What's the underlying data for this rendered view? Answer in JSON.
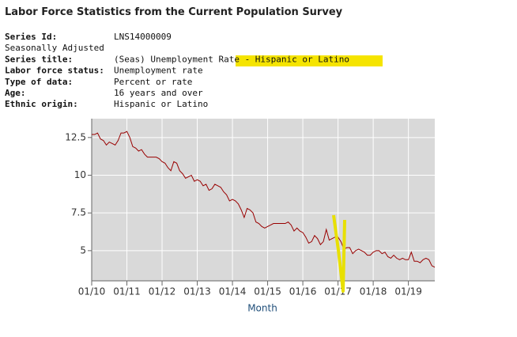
{
  "header": {
    "title": "Labor Force Statistics from the Current Population Survey"
  },
  "series_info": {
    "rows": [
      {
        "label": "Series Id:",
        "value": "LNS14000009"
      },
      {
        "label": "Seasonally Adjusted"
      },
      {
        "label": "Series title:",
        "value": "(Seas) Unemployment Rate - Hispanic or Latino"
      },
      {
        "label": "Labor force status:",
        "value": "Unemployment rate"
      },
      {
        "label": "Type of data:",
        "value": "Percent or rate"
      },
      {
        "label": "Age:",
        "value": "16 years and over"
      },
      {
        "label": "Ethnic origin:",
        "value": "Hispanic or Latino"
      }
    ]
  },
  "chart_data": {
    "type": "line",
    "x_label": "Month",
    "categories": [
      "01/10",
      null,
      null,
      null,
      null,
      null,
      null,
      null,
      null,
      null,
      null,
      null,
      "01/11",
      null,
      null,
      null,
      null,
      null,
      null,
      null,
      null,
      null,
      null,
      null,
      "01/12",
      null,
      null,
      null,
      null,
      null,
      null,
      null,
      null,
      null,
      null,
      null,
      "01/13",
      null,
      null,
      null,
      null,
      null,
      null,
      null,
      null,
      null,
      null,
      null,
      "01/14",
      null,
      null,
      null,
      null,
      null,
      null,
      null,
      null,
      null,
      null,
      null,
      "01/15",
      null,
      null,
      null,
      null,
      null,
      null,
      null,
      null,
      null,
      null,
      null,
      "01/16",
      null,
      null,
      null,
      null,
      null,
      null,
      null,
      null,
      null,
      null,
      null,
      "01/17",
      null,
      null,
      null,
      null,
      null,
      null,
      null,
      null,
      null,
      null,
      null,
      "01/18",
      null,
      null,
      null,
      null,
      null,
      null,
      null,
      null,
      null,
      null,
      null,
      "01/19",
      null,
      null,
      null,
      null,
      null,
      null,
      null,
      null,
      null
    ],
    "series": [
      {
        "name": "Unemployment rate",
        "color": "#990000",
        "values": [
          12.7,
          12.7,
          12.8,
          12.4,
          12.3,
          12.0,
          12.2,
          12.1,
          12.0,
          12.3,
          12.8,
          12.8,
          12.9,
          12.5,
          11.9,
          11.8,
          11.6,
          11.7,
          11.4,
          11.2,
          11.2,
          11.2,
          11.2,
          11.1,
          10.9,
          10.8,
          10.5,
          10.3,
          10.9,
          10.8,
          10.3,
          10.1,
          9.8,
          9.9,
          10.0,
          9.6,
          9.7,
          9.6,
          9.3,
          9.4,
          9.0,
          9.1,
          9.4,
          9.3,
          9.2,
          8.9,
          8.7,
          8.3,
          8.4,
          8.3,
          8.1,
          7.7,
          7.2,
          7.8,
          7.7,
          7.5,
          6.9,
          6.8,
          6.6,
          6.5,
          6.6,
          6.7,
          6.8,
          6.8,
          6.8,
          6.8,
          6.8,
          6.9,
          6.7,
          6.3,
          6.5,
          6.3,
          6.2,
          5.9,
          5.5,
          5.6,
          6.0,
          5.8,
          5.4,
          5.6,
          6.4,
          5.7,
          5.8,
          5.9,
          5.9,
          5.6,
          5.1,
          5.2,
          5.2,
          4.8,
          5.0,
          5.1,
          5.0,
          4.9,
          4.7,
          4.7,
          4.9,
          5.0,
          5.0,
          4.8,
          4.9,
          4.6,
          4.5,
          4.7,
          4.5,
          4.4,
          4.5,
          4.4,
          4.4,
          4.9,
          4.3,
          4.3,
          4.2,
          4.4,
          4.5,
          4.4,
          4.0,
          3.9
        ]
      }
    ],
    "ylim": [
      3,
      13.75
    ],
    "yticks": [
      5,
      7.5,
      10,
      12.5
    ],
    "grid": true
  }
}
